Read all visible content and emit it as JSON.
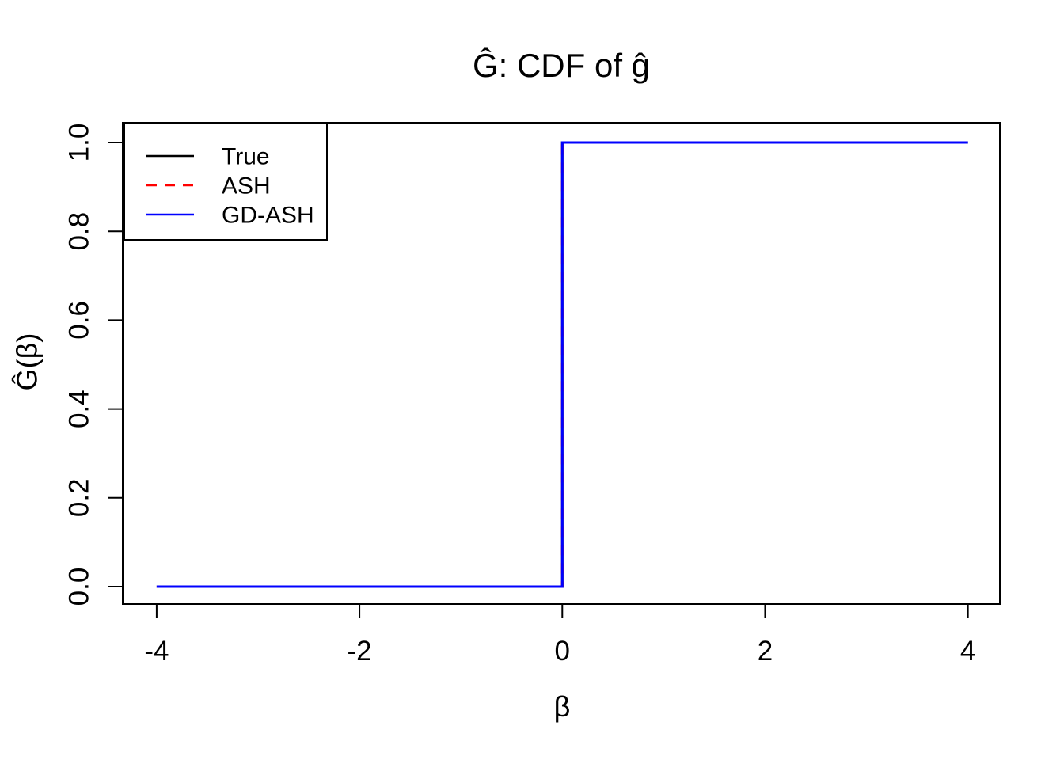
{
  "chart_data": {
    "type": "line",
    "title": "Ĝ: CDF of ĝ",
    "xlabel": "β",
    "ylabel": "Ĝ(β)",
    "xlim": [
      -4.335,
      4.315
    ],
    "ylim": [
      -0.0392,
      1.0446
    ],
    "grid": false,
    "background": "#ffffff",
    "axis_color": "#000000",
    "x_ticks": {
      "values": [
        -4,
        -2,
        0,
        2,
        4
      ],
      "labels": [
        "-4",
        "-2",
        "0",
        "2",
        "4"
      ]
    },
    "y_ticks": {
      "values": [
        0.0,
        0.2,
        0.4,
        0.6,
        0.8,
        1.0
      ],
      "labels": [
        "0.0",
        "0.2",
        "0.4",
        "0.6",
        "0.8",
        "1.0"
      ]
    },
    "legend_position": "topleft",
    "series": [
      {
        "name": "True",
        "color": "#000000",
        "style": "solid",
        "x": [
          -4,
          0,
          0,
          4
        ],
        "y": [
          0,
          0,
          1,
          1
        ]
      },
      {
        "name": "ASH",
        "color": "#FF0000",
        "style": "dashed",
        "x": [
          -4,
          0,
          0,
          4
        ],
        "y": [
          0,
          0,
          1,
          1
        ]
      },
      {
        "name": "GD-ASH",
        "color": "#0000FF",
        "style": "solid",
        "x": [
          -4,
          0,
          0,
          4
        ],
        "y": [
          0,
          0,
          1,
          1
        ]
      }
    ]
  }
}
